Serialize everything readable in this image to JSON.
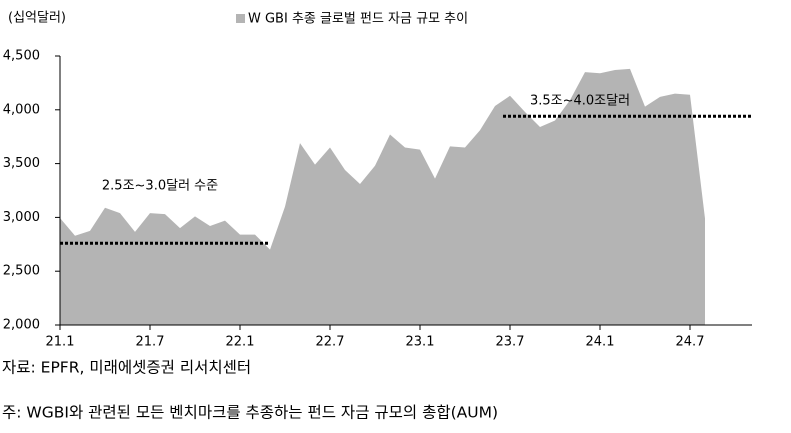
{
  "chart_data": {
    "type": "area",
    "unit_label": "(십억달러)",
    "series": [
      {
        "name": "W GBI 추종 글로벌 펀드 자금 규모 추이",
        "color": "#b4b4b4",
        "values": [
          2994,
          2830,
          2875,
          3090,
          3040,
          2865,
          3040,
          3030,
          2900,
          3010,
          2920,
          2970,
          2840,
          2840,
          2700,
          3100,
          3690,
          3490,
          3650,
          3440,
          3310,
          3480,
          3770,
          3650,
          3630,
          3360,
          3660,
          3650,
          3810,
          4035,
          4130,
          3980,
          3840,
          3900,
          4090,
          4350,
          4340,
          4370,
          4380,
          4030,
          4120,
          4150,
          4140,
          2990
        ]
      }
    ],
    "categories": [
      "21.1",
      null,
      null,
      null,
      null,
      null,
      "21.7",
      null,
      null,
      null,
      null,
      null,
      "22.1",
      null,
      null,
      null,
      null,
      null,
      "22.7",
      null,
      null,
      null,
      null,
      null,
      "23.1",
      null,
      null,
      null,
      null,
      null,
      "23.7",
      null,
      null,
      null,
      null,
      null,
      "24.1",
      null,
      null,
      null,
      null,
      null,
      "24.7",
      null
    ],
    "ylim": [
      2000,
      4500
    ],
    "yticks": [
      {
        "value": 2000,
        "label": "2,000"
      },
      {
        "value": 2500,
        "label": "2,500"
      },
      {
        "value": 3000,
        "label": "3,000"
      },
      {
        "value": 3500,
        "label": "3,500"
      },
      {
        "value": 4000,
        "label": "4,000"
      },
      {
        "value": 4500,
        "label": "4,500"
      }
    ],
    "reference_lines": [
      {
        "value": 2760,
        "label": "2.5조~3.0달러 수준"
      },
      {
        "value": 3940,
        "label": "3.5조~4.0조달러"
      }
    ],
    "source": "자료: EPFR, 미래에셋증권 리서치센터",
    "note": "주: WGBI와 관련된 모든 벤치마크를 추종하는 펀드 자금 규모의 총합(AUM)"
  }
}
